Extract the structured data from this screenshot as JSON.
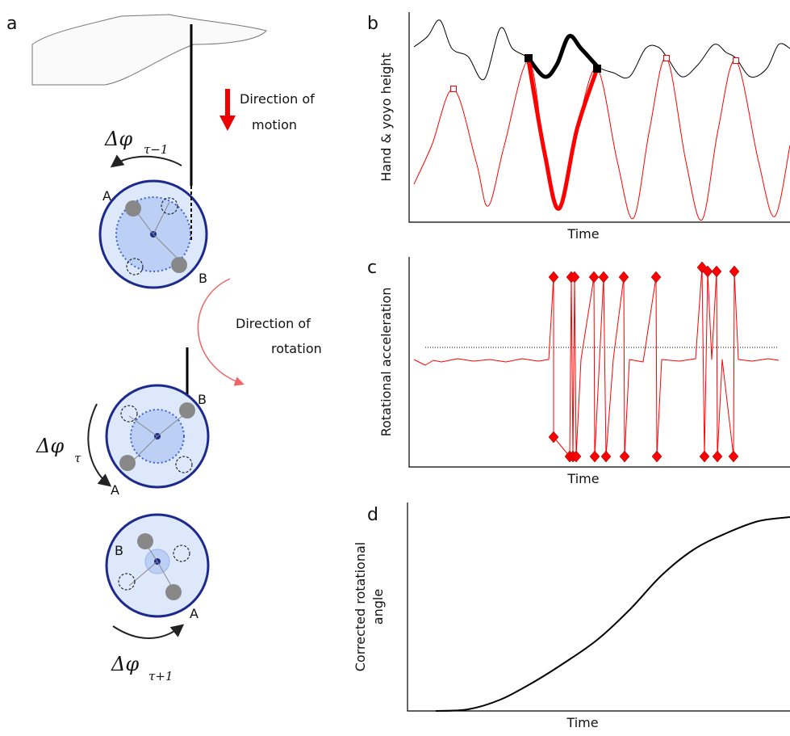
{
  "panel_labels": [
    "a",
    "b",
    "c",
    "d"
  ],
  "diagram": {
    "motion_label": [
      "Direction of",
      "motion"
    ],
    "rotation_label": [
      "Direction of",
      "rotation"
    ],
    "delta_symbol": "Δφ",
    "subscripts": [
      "τ−1",
      "τ",
      "τ+1"
    ],
    "points": [
      "A",
      "B"
    ]
  },
  "chart_data": [
    {
      "type": "line",
      "xlabel": "Time",
      "ylabel": [
        "Hand & yoyo height"
      ],
      "xlim": [
        0,
        472
      ],
      "ylim": [
        0,
        260
      ],
      "series": [
        {
          "color": "#000000",
          "width": 1,
          "x": [
            6,
            23,
            38,
            53,
            73,
            93,
            113,
            128,
            148,
            168,
            183,
            198,
            213,
            233,
            253,
            273,
            293,
            308,
            319,
            338,
            358,
            378,
            393,
            405,
            423,
            443,
            458,
            472
          ],
          "values": [
            217,
            230,
            250,
            215,
            205,
            177,
            240,
            215,
            203,
            180,
            195,
            230,
            215,
            193,
            185,
            180,
            215,
            217,
            205,
            180,
            195,
            220,
            210,
            203,
            180,
            190,
            220,
            215
          ]
        },
        {
          "color": "#000000",
          "width": 5,
          "x": [
            148,
            168,
            183,
            198,
            213,
            233
          ],
          "values": [
            203,
            180,
            195,
            230,
            215,
            193
          ]
        },
        {
          "color": "#ff0000",
          "width": 1,
          "x": [
            6,
            28,
            55,
            83,
            98,
            118,
            148,
            168,
            186,
            208,
            233,
            258,
            278,
            298,
            319,
            343,
            363,
            383,
            405,
            433,
            453,
            472
          ],
          "values": [
            47,
            95,
            165,
            75,
            20,
            95,
            200,
            85,
            17,
            115,
            190,
            75,
            5,
            115,
            203,
            75,
            3,
            115,
            200,
            75,
            7,
            95
          ]
        },
        {
          "color": "#ff0000",
          "width": 5,
          "x": [
            148,
            168,
            186,
            208,
            233
          ],
          "values": [
            200,
            85,
            17,
            115,
            190
          ]
        },
        {
          "color": "#000000",
          "marker": "square",
          "x": [
            148,
            233
          ],
          "values": [
            203,
            190
          ]
        },
        {
          "color": "#ff0000",
          "marker": "open-square",
          "x": [
            55,
            319,
            405
          ],
          "values": [
            165,
            203,
            200
          ]
        }
      ]
    },
    {
      "type": "line",
      "xlabel": "Time",
      "ylabel": [
        "Rotational acceleration"
      ],
      "xlim": [
        0,
        472
      ],
      "ylim": [
        0,
        260
      ],
      "threshold": 148,
      "series": [
        {
          "color": "#ff0000",
          "width": 1,
          "x": [
            6,
            20,
            30,
            40,
            60,
            80,
            100,
            120,
            140,
            160,
            173,
            179,
            179,
            199,
            201,
            203,
            205,
            207,
            213,
            229,
            230,
            241,
            244,
            253,
            266,
            267,
            273,
            290,
            306,
            307,
            313,
            335,
            355,
            363,
            366,
            370,
            375,
            381,
            382,
            388,
            402,
            403,
            408,
            425,
            445,
            458
          ],
          "values": [
            133,
            126,
            132,
            130,
            134,
            131,
            133,
            130,
            134,
            131,
            133,
            235,
            37,
            13,
            235,
            13,
            235,
            13,
            133,
            235,
            13,
            235,
            13,
            133,
            235,
            13,
            133,
            130,
            235,
            13,
            133,
            131,
            134,
            247,
            13,
            242,
            133,
            242,
            13,
            133,
            13,
            242,
            133,
            131,
            134,
            132
          ]
        },
        {
          "color": "#ff0000",
          "marker": "diamond",
          "x": [
            179,
            201,
            205,
            229,
            241,
            266,
            306,
            363,
            370,
            381,
            403
          ],
          "values": [
            235,
            235,
            235,
            235,
            235,
            235,
            235,
            247,
            242,
            242,
            242
          ]
        },
        {
          "color": "#ff0000",
          "marker": "diamond",
          "x": [
            179,
            199,
            203,
            207,
            230,
            244,
            267,
            307,
            366,
            382,
            402
          ],
          "values": [
            37,
            13,
            13,
            13,
            13,
            13,
            13,
            13,
            13,
            13,
            13
          ]
        }
      ]
    },
    {
      "type": "line",
      "xlabel": "Time",
      "ylabel": [
        "Corrected rotational",
        "angle"
      ],
      "xlim": [
        0,
        474
      ],
      "ylim": [
        0,
        258
      ],
      "series": [
        {
          "color": "#000000",
          "width": 2,
          "x": [
            35,
            75,
            115,
            155,
            195,
            235,
            275,
            315,
            355,
            395,
            435,
            474
          ],
          "values": [
            0,
            2,
            14,
            35,
            60,
            88,
            125,
            168,
            200,
            220,
            235,
            240
          ]
        }
      ]
    }
  ]
}
